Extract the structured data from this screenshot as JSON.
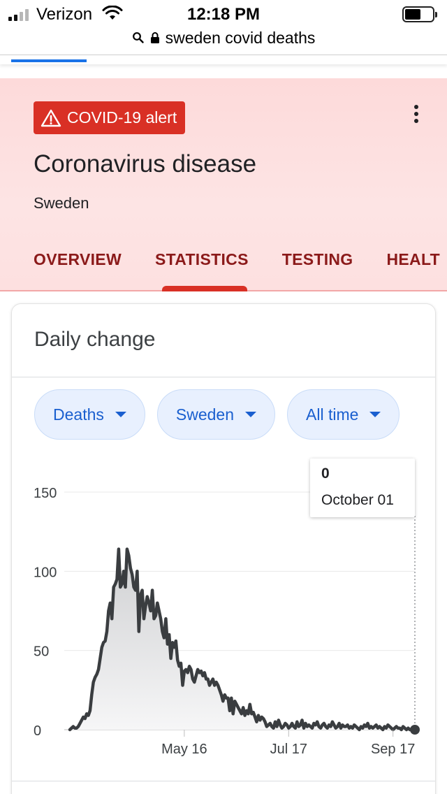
{
  "status_bar": {
    "carrier": "Verizon",
    "time": "12:18 PM"
  },
  "url_bar": {
    "text": "sweden covid deaths"
  },
  "header": {
    "alert_label": "COVID-19 alert",
    "title": "Coronavirus disease",
    "subtitle": "Sweden",
    "tabs": [
      {
        "label": "OVERVIEW",
        "active": false
      },
      {
        "label": "STATISTICS",
        "active": true
      },
      {
        "label": "TESTING",
        "active": false
      },
      {
        "label": "HEALT",
        "active": false
      }
    ]
  },
  "card": {
    "title": "Daily change",
    "chips": [
      {
        "label": "Deaths"
      },
      {
        "label": "Sweden"
      },
      {
        "label": "All time"
      }
    ],
    "tooltip": {
      "value": "0",
      "date": "October 01"
    }
  },
  "colors": {
    "accent_blue": "#1a73e8",
    "alert_red": "#d93025",
    "tab_text": "#8b1a1a",
    "line": "#3a3d40"
  },
  "chart_data": {
    "type": "area",
    "title": "",
    "xlabel": "",
    "ylabel": "",
    "x_tick_labels": [
      "May 16",
      "Jul 17",
      "Sep 17"
    ],
    "x_tick_day_index": [
      68,
      130,
      192
    ],
    "y_ticks": [
      0,
      50,
      100,
      150
    ],
    "ylim": [
      0,
      150
    ],
    "grid": true,
    "series": [
      {
        "values": [
          0,
          1,
          2,
          1,
          1,
          2,
          4,
          6,
          8,
          7,
          10,
          9,
          12,
          22,
          30,
          33,
          35,
          38,
          45,
          52,
          55,
          56,
          62,
          75,
          80,
          70,
          90,
          92,
          95,
          114,
          90,
          92,
          100,
          90,
          114,
          110,
          102,
          98,
          90,
          88,
          100,
          62,
          85,
          88,
          70,
          78,
          84,
          80,
          75,
          88,
          70,
          72,
          80,
          75,
          70,
          62,
          58,
          70,
          54,
          60,
          45,
          55,
          52,
          56,
          44,
          40,
          42,
          28,
          37,
          38,
          36,
          40,
          38,
          32,
          30,
          34,
          38,
          36,
          37,
          34,
          36,
          32,
          32,
          28,
          30,
          32,
          28,
          30,
          28,
          25,
          22,
          18,
          22,
          20,
          20,
          12,
          20,
          10,
          18,
          16,
          14,
          12,
          10,
          14,
          9,
          12,
          10,
          16,
          10,
          11,
          8,
          5,
          9,
          6,
          8,
          7,
          5,
          2,
          3,
          4,
          2,
          1,
          5,
          2,
          6,
          3,
          1,
          2,
          4,
          3,
          1,
          2,
          4,
          2,
          1,
          5,
          2,
          3,
          6,
          1,
          4,
          2,
          3,
          2,
          1,
          4,
          3,
          5,
          2,
          1,
          3,
          4,
          2,
          1,
          3,
          2,
          5,
          3,
          1,
          2,
          4,
          1,
          3,
          2,
          2,
          3,
          1,
          2,
          1,
          3,
          2,
          1,
          0,
          2,
          1,
          3,
          2,
          4,
          1,
          2,
          1,
          2,
          3,
          1,
          2,
          1,
          0,
          2,
          1,
          3,
          2,
          1,
          0,
          1,
          2,
          1,
          1,
          0,
          2,
          1,
          0,
          1,
          0,
          0,
          1,
          0
        ]
      }
    ],
    "highlight": {
      "label": "October 01",
      "value": 0
    }
  }
}
